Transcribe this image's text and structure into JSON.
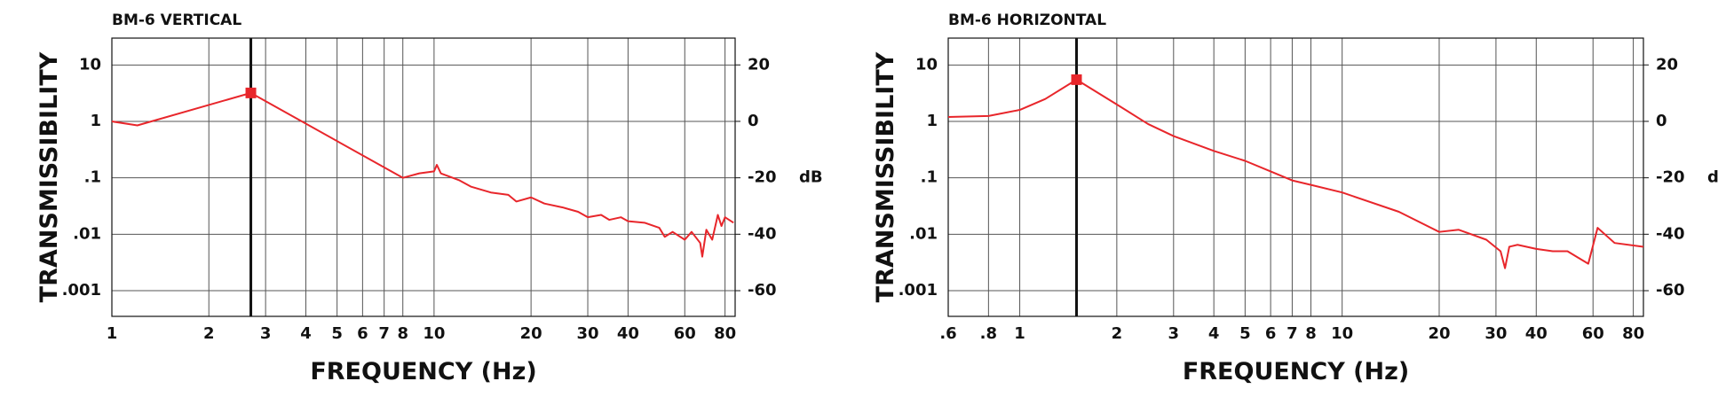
{
  "chart_data": [
    {
      "type": "line",
      "title": "BM-6 VERTICAL",
      "x_label": "FREQUENCY (Hz)",
      "y_label": "TRANSMISSIBILITY",
      "y2_label": "dB",
      "log_x": true,
      "log_y": true,
      "grid": true,
      "xlim": [
        1,
        86
      ],
      "ylim": [
        0.00035,
        30
      ],
      "y2lim": [
        -69.1,
        29.5
      ],
      "xticks": [
        1,
        2,
        3,
        4,
        5,
        6,
        7,
        8,
        10,
        20,
        30,
        40,
        60,
        80
      ],
      "yticks": [
        10,
        1,
        {
          "value": 0.1,
          "label": ".1"
        },
        {
          "value": 0.01,
          "label": ".01"
        },
        {
          "value": 0.001,
          "label": ".001"
        }
      ],
      "y2ticks": [
        20,
        0,
        -20,
        -40,
        -60
      ],
      "peak": {
        "x": 2.7,
        "y": 3.2
      },
      "series": [
        {
          "color": "#e8262b",
          "x": [
            1,
            1.2,
            2.7,
            8,
            9,
            10,
            10.2,
            10.5,
            12,
            13,
            15,
            17,
            18,
            20,
            22,
            25,
            28,
            30,
            33,
            35,
            38,
            40,
            45,
            50,
            52,
            55,
            60,
            63,
            67,
            68,
            70,
            73,
            76,
            78,
            80,
            85
          ],
          "values": [
            1.0,
            0.85,
            3.2,
            0.1,
            0.12,
            0.13,
            0.17,
            0.12,
            0.09,
            0.07,
            0.055,
            0.05,
            0.038,
            0.045,
            0.035,
            0.03,
            0.025,
            0.02,
            0.022,
            0.018,
            0.02,
            0.017,
            0.016,
            0.013,
            0.009,
            0.011,
            0.008,
            0.011,
            0.007,
            0.004,
            0.012,
            0.008,
            0.022,
            0.014,
            0.02,
            0.016
          ]
        }
      ]
    },
    {
      "type": "line",
      "title": "BM-6 HORIZONTAL",
      "x_label": "FREQUENCY (Hz)",
      "y_label": "TRANSMISSIBILITY",
      "y2_label": "dB",
      "log_x": true,
      "log_y": true,
      "grid": true,
      "xlim": [
        0.6,
        86
      ],
      "ylim": [
        0.00035,
        30
      ],
      "y2lim": [
        -69.1,
        29.5
      ],
      "xticks": [
        {
          "value": 0.6,
          "label": ".6"
        },
        {
          "value": 0.8,
          "label": ".8"
        },
        1,
        2,
        3,
        4,
        5,
        6,
        7,
        8,
        10,
        20,
        30,
        40,
        60,
        80
      ],
      "yticks": [
        10,
        1,
        {
          "value": 0.1,
          "label": ".1"
        },
        {
          "value": 0.01,
          "label": ".01"
        },
        {
          "value": 0.001,
          "label": ".001"
        }
      ],
      "y2ticks": [
        20,
        0,
        -20,
        -40,
        -60
      ],
      "peak": {
        "x": 1.5,
        "y": 5.5
      },
      "series": [
        {
          "color": "#e8262b",
          "x": [
            0.6,
            0.8,
            1,
            1.2,
            1.5,
            2,
            2.5,
            3,
            4,
            5,
            6,
            7,
            8,
            10,
            15,
            20,
            23,
            28,
            31,
            32,
            33,
            35,
            40,
            45,
            50,
            58,
            62,
            70,
            86
          ],
          "values": [
            1.2,
            1.25,
            1.6,
            2.5,
            5.5,
            2.0,
            0.9,
            0.55,
            0.3,
            0.2,
            0.13,
            0.09,
            0.075,
            0.055,
            0.025,
            0.011,
            0.012,
            0.008,
            0.005,
            0.0025,
            0.006,
            0.0065,
            0.0055,
            0.005,
            0.005,
            0.003,
            0.013,
            0.007,
            0.006
          ]
        }
      ]
    }
  ]
}
